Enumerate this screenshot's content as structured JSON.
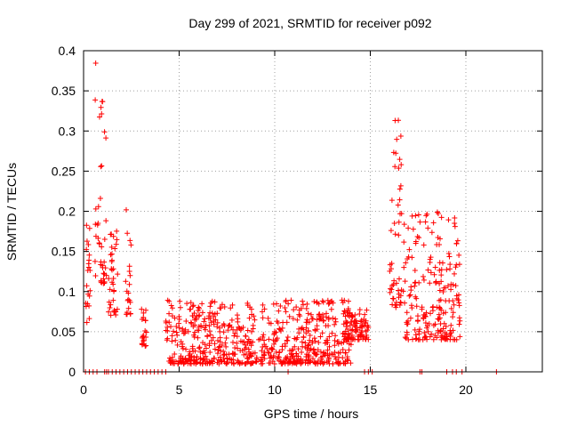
{
  "chart_data": {
    "type": "scatter",
    "title": "Day 299 of 2021, SRMTID for receiver p092",
    "xlabel": "GPS time / hours",
    "ylabel": "SRMTID / TECUs",
    "xlim": [
      0,
      24
    ],
    "ylim": [
      0,
      0.4
    ],
    "xticks": [
      0,
      5,
      10,
      15,
      20
    ],
    "xtick_labels": [
      "0",
      "5",
      "10",
      "15",
      "20"
    ],
    "yticks": [
      0,
      0.05,
      0.1,
      0.15,
      0.2,
      0.25,
      0.3,
      0.35,
      0.4
    ],
    "ytick_labels": [
      "0",
      "0.05",
      "0.1",
      "0.15",
      "0.2",
      "0.25",
      "0.3",
      "0.35",
      "0.4"
    ],
    "grid": true,
    "marker": "+",
    "series": [
      {
        "name": "SRMTID",
        "color": "#ff0000",
        "description": "dense scatter of per-epoch SRMTID values",
        "segments": [
          {
            "x_range": [
              0.1,
              0.4
            ],
            "y_range": [
              0.06,
              0.19
            ]
          },
          {
            "x_range": [
              0.6,
              1.2
            ],
            "y_range": [
              0.11,
              0.385
            ]
          },
          {
            "x_range": [
              1.3,
              1.8
            ],
            "y_range": [
              0.07,
              0.18
            ]
          },
          {
            "x_range": [
              2.2,
              2.5
            ],
            "y_range": [
              0.07,
              0.22
            ]
          },
          {
            "x_range": [
              3.0,
              3.3
            ],
            "y_range": [
              0.03,
              0.08
            ]
          },
          {
            "x_range": [
              4.3,
              14.0
            ],
            "y_range": [
              0.01,
              0.09
            ]
          },
          {
            "x_range": [
              13.6,
              14.9
            ],
            "y_range": [
              0.04,
              0.08
            ]
          },
          {
            "x_range": [
              16.0,
              16.7
            ],
            "y_range": [
              0.08,
              0.32
            ]
          },
          {
            "x_range": [
              16.7,
              19.7
            ],
            "y_range": [
              0.04,
              0.2
            ]
          }
        ],
        "zero_points_x": [
          0.1,
          0.3,
          0.5,
          0.7,
          1.1,
          1.2,
          1.3,
          1.5,
          1.7,
          1.9,
          2.1,
          2.3,
          2.5,
          2.7,
          2.9,
          3.1,
          3.3,
          3.5,
          3.7,
          3.9,
          4.1,
          4.3,
          10.7,
          14.7,
          14.9,
          15.1,
          17.6,
          17.7,
          19.0,
          19.3,
          19.5,
          19.8,
          21.6
        ]
      }
    ]
  }
}
